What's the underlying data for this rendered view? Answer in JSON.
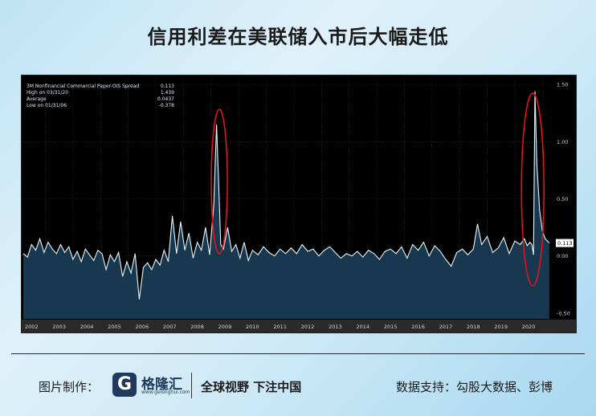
{
  "title": "信用利差在美联储入市后大幅走低",
  "legend": {
    "rows": [
      {
        "name": "3M Nonfinancial Commercial Paper-OIS Spread",
        "value": "0.113"
      },
      {
        "name": "High on 03/31/20",
        "value": "1.439"
      },
      {
        "name": "Average",
        "value": "0.0437"
      },
      {
        "name": "Low on 01/31/06",
        "value": "-0.378"
      }
    ]
  },
  "colors": {
    "line": "#e8f6ff",
    "area": "#17384f",
    "highlight_ellipse": "#e0141a",
    "background_frame": "#000000"
  },
  "chart_data": {
    "type": "area",
    "ylim": [
      -0.55,
      1.55
    ],
    "yticks": [
      -0.5,
      0.0,
      0.5,
      1.0,
      1.5
    ],
    "ytick_labels": [
      "-0.50",
      "0.00",
      "0.50",
      "1.00",
      "1.50"
    ],
    "xlim": [
      2001.7,
      2020.9
    ],
    "xticks": [
      2002,
      2003,
      2004,
      2005,
      2006,
      2007,
      2008,
      2009,
      2010,
      2011,
      2012,
      2013,
      2014,
      2015,
      2016,
      2017,
      2018,
      2019,
      2020
    ],
    "xtick_labels": [
      "2002",
      "2003",
      "2004",
      "2005",
      "2006",
      "2007",
      "2008",
      "2009",
      "2010",
      "2011",
      "2012",
      "2013",
      "2014",
      "2015",
      "2016",
      "2017",
      "2018",
      "2019",
      "2020"
    ],
    "last_value_label": "0.113",
    "series": [
      {
        "name": "3M Nonfinancial Commercial Paper-OIS Spread",
        "x": [
          2001.7,
          2001.85,
          2002.0,
          2002.15,
          2002.3,
          2002.45,
          2002.6,
          2002.75,
          2002.9,
          2003.05,
          2003.2,
          2003.35,
          2003.5,
          2003.65,
          2003.8,
          2003.95,
          2004.1,
          2004.25,
          2004.4,
          2004.55,
          2004.7,
          2004.85,
          2005.0,
          2005.15,
          2005.3,
          2005.45,
          2005.6,
          2005.75,
          2005.9,
          2006.05,
          2006.2,
          2006.35,
          2006.5,
          2006.65,
          2006.8,
          2006.95,
          2007.1,
          2007.25,
          2007.4,
          2007.55,
          2007.7,
          2007.85,
          2008.0,
          2008.15,
          2008.3,
          2008.45,
          2008.6,
          2008.7,
          2008.78,
          2008.85,
          2008.95,
          2009.1,
          2009.25,
          2009.4,
          2009.55,
          2009.7,
          2009.85,
          2010.0,
          2010.2,
          2010.4,
          2010.6,
          2010.8,
          2011.0,
          2011.2,
          2011.4,
          2011.6,
          2011.8,
          2012.0,
          2012.2,
          2012.4,
          2012.6,
          2012.8,
          2013.0,
          2013.2,
          2013.4,
          2013.6,
          2013.8,
          2014.0,
          2014.2,
          2014.4,
          2014.6,
          2014.8,
          2015.0,
          2015.2,
          2015.4,
          2015.6,
          2015.8,
          2016.0,
          2016.2,
          2016.4,
          2016.6,
          2016.8,
          2017.0,
          2017.2,
          2017.4,
          2017.6,
          2017.8,
          2018.0,
          2018.15,
          2018.3,
          2018.5,
          2018.7,
          2018.9,
          2019.1,
          2019.3,
          2019.5,
          2019.7,
          2019.85,
          2019.95,
          2020.05,
          2020.12,
          2020.18,
          2020.23,
          2020.3,
          2020.4,
          2020.5,
          2020.6,
          2020.75
        ],
        "values": [
          0.02,
          -0.01,
          0.1,
          0.05,
          0.15,
          0.03,
          0.12,
          0.06,
          0.02,
          0.1,
          0.03,
          0.08,
          -0.03,
          0.04,
          -0.05,
          0.06,
          0.01,
          -0.04,
          0.05,
          0.02,
          -0.12,
          0.01,
          -0.05,
          0.03,
          -0.18,
          -0.05,
          -0.15,
          0.02,
          -0.38,
          -0.1,
          -0.06,
          -0.12,
          -0.03,
          -0.08,
          0.05,
          -0.05,
          0.35,
          0.02,
          0.3,
          0.05,
          0.2,
          -0.02,
          0.12,
          0.05,
          0.25,
          0.01,
          0.45,
          1.15,
          0.6,
          0.1,
          0.06,
          0.25,
          0.04,
          0.1,
          -0.02,
          0.12,
          -0.04,
          0.05,
          0.01,
          0.08,
          0.03,
          0.0,
          0.06,
          0.02,
          0.07,
          0.02,
          0.1,
          0.04,
          0.06,
          0.0,
          0.05,
          0.08,
          0.03,
          -0.02,
          0.02,
          0.0,
          0.04,
          -0.01,
          0.05,
          0.02,
          -0.03,
          0.04,
          0.06,
          0.02,
          0.08,
          -0.02,
          0.1,
          0.05,
          0.12,
          0.0,
          0.09,
          0.04,
          -0.03,
          -0.09,
          0.03,
          0.06,
          0.01,
          0.06,
          0.28,
          0.1,
          0.17,
          0.03,
          0.07,
          0.16,
          0.02,
          0.13,
          0.1,
          0.15,
          0.09,
          0.12,
          0.1,
          0.01,
          1.439,
          0.8,
          0.4,
          0.22,
          0.15,
          0.113
        ]
      }
    ],
    "highlights": [
      {
        "center_x": 2008.8,
        "center_y": 0.65
      },
      {
        "center_x": 2020.15,
        "center_y": 0.58
      }
    ]
  },
  "footer": {
    "left_label": "图片制作：",
    "logo_letter": "G",
    "logo_name": "格隆汇",
    "logo_url": "www.gelonghui.com",
    "slogan": "全球视野 下注中国",
    "right_label": "数据支持：勾股大数据、彭博"
  }
}
